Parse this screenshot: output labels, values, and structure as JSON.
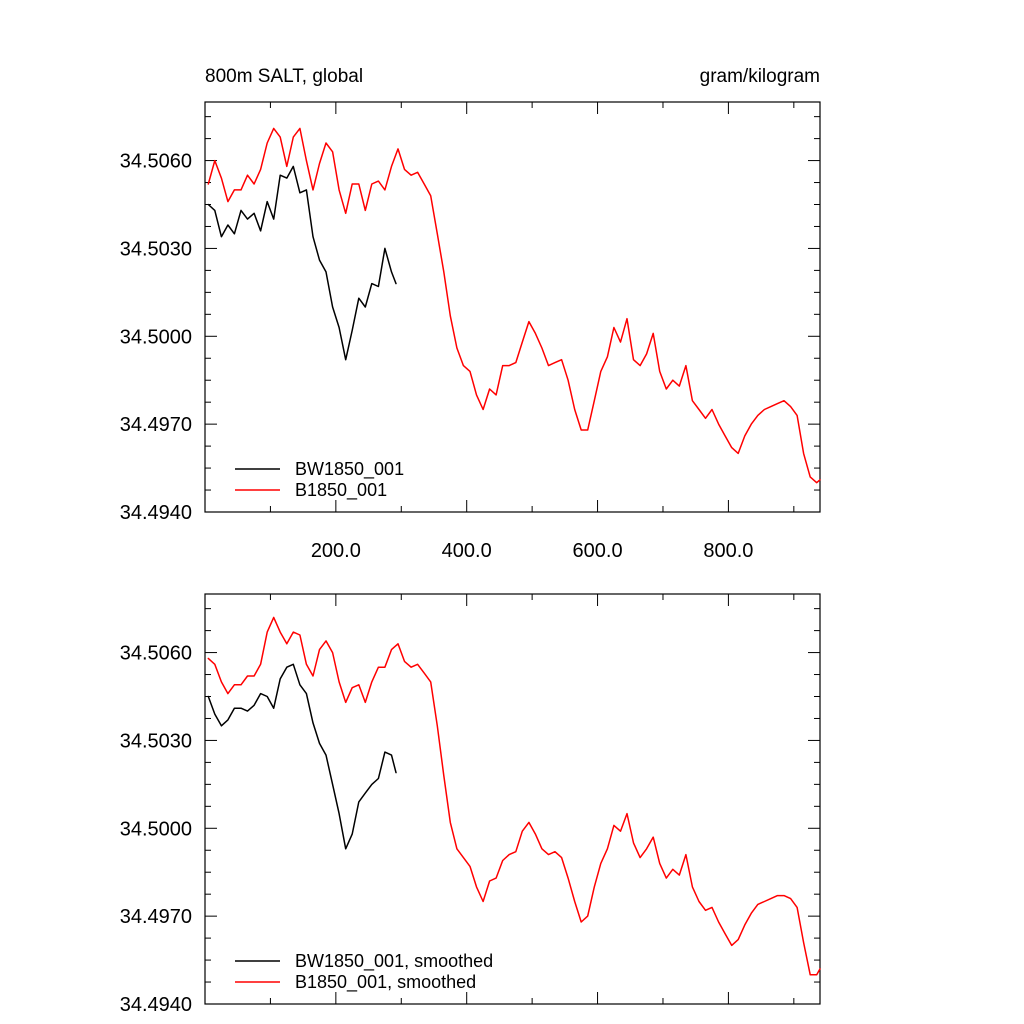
{
  "colors": {
    "bw": "#000000",
    "b": "#ff0000"
  },
  "chart_data": [
    {
      "type": "line",
      "title": "800m SALT, global",
      "units": "gram/kilogram",
      "xlim": [
        0,
        940
      ],
      "ylim": [
        34.494,
        34.508
      ],
      "xticks": [
        200,
        400,
        600,
        800
      ],
      "xtick_labels": [
        "200.0",
        "400.0",
        "600.0",
        "800.0"
      ],
      "yticks": [
        34.494,
        34.497,
        34.5,
        34.503,
        34.506
      ],
      "ytick_labels": [
        "34.4940",
        "34.4970",
        "34.5000",
        "34.5030",
        "34.5060"
      ],
      "series": [
        {
          "name": "BW1850_001",
          "x": [
            5,
            15,
            25,
            35,
            45,
            55,
            65,
            75,
            85,
            95,
            105,
            115,
            125,
            135,
            145,
            155,
            165,
            175,
            185,
            195,
            205,
            215,
            225,
            235,
            245,
            255,
            265,
            275,
            285,
            292
          ],
          "y": [
            34.5045,
            34.5043,
            34.5034,
            34.5038,
            34.5035,
            34.5043,
            34.504,
            34.5042,
            34.5036,
            34.5046,
            34.504,
            34.5055,
            34.5054,
            34.5058,
            34.5049,
            34.505,
            34.5034,
            34.5026,
            34.5022,
            34.501,
            34.5003,
            34.4992,
            34.5002,
            34.5013,
            34.501,
            34.5018,
            34.5017,
            34.503,
            34.5022,
            34.5018
          ]
        },
        {
          "name": "B1850_001",
          "x": [
            5,
            15,
            25,
            35,
            45,
            55,
            65,
            75,
            85,
            95,
            105,
            115,
            125,
            135,
            145,
            155,
            165,
            175,
            185,
            195,
            205,
            215,
            225,
            235,
            245,
            255,
            265,
            275,
            285,
            295,
            305,
            315,
            325,
            335,
            345,
            355,
            365,
            375,
            385,
            395,
            405,
            415,
            425,
            435,
            445,
            455,
            465,
            475,
            485,
            495,
            505,
            515,
            525,
            535,
            545,
            555,
            565,
            575,
            585,
            595,
            605,
            615,
            625,
            635,
            645,
            655,
            665,
            675,
            685,
            695,
            705,
            715,
            725,
            735,
            745,
            755,
            765,
            775,
            785,
            795,
            805,
            815,
            825,
            835,
            845,
            855,
            865,
            875,
            885,
            895,
            905,
            915,
            925,
            935,
            940
          ],
          "y": [
            34.5052,
            34.506,
            34.5054,
            34.5046,
            34.505,
            34.505,
            34.5055,
            34.5052,
            34.5057,
            34.5066,
            34.5071,
            34.5068,
            34.5058,
            34.5068,
            34.5071,
            34.506,
            34.505,
            34.5059,
            34.5066,
            34.5063,
            34.505,
            34.5042,
            34.5052,
            34.5052,
            34.5043,
            34.5052,
            34.5053,
            34.505,
            34.5058,
            34.5064,
            34.5057,
            34.5055,
            34.5056,
            34.5052,
            34.5048,
            34.5035,
            34.5022,
            34.5007,
            34.4996,
            34.499,
            34.4988,
            34.498,
            34.4975,
            34.4982,
            34.498,
            34.499,
            34.499,
            34.4991,
            34.4998,
            34.5005,
            34.5001,
            34.4996,
            34.499,
            34.4991,
            34.4992,
            34.4985,
            34.4975,
            34.4968,
            34.4968,
            34.4978,
            34.4988,
            34.4993,
            34.5003,
            34.4998,
            34.5006,
            34.4992,
            34.499,
            34.4994,
            34.5001,
            34.4988,
            34.4982,
            34.4985,
            34.4983,
            34.499,
            34.4978,
            34.4975,
            34.4972,
            34.4975,
            34.497,
            34.4966,
            34.4962,
            34.496,
            34.4966,
            34.497,
            34.4973,
            34.4975,
            34.4976,
            34.4977,
            34.4978,
            34.4976,
            34.4973,
            34.496,
            34.4952,
            34.495,
            34.4951
          ]
        }
      ]
    },
    {
      "type": "line",
      "title": "",
      "xlim": [
        0,
        940
      ],
      "ylim": [
        34.494,
        34.508
      ],
      "yticks": [
        34.494,
        34.497,
        34.5,
        34.503,
        34.506
      ],
      "ytick_labels": [
        "34.4940",
        "34.4970",
        "34.5000",
        "34.5030",
        "34.5060"
      ],
      "series": [
        {
          "name": "BW1850_001, smoothed",
          "x": [
            5,
            15,
            25,
            35,
            45,
            55,
            65,
            75,
            85,
            95,
            105,
            115,
            125,
            135,
            145,
            155,
            165,
            175,
            185,
            195,
            205,
            215,
            225,
            235,
            245,
            255,
            265,
            275,
            285,
            292
          ],
          "y": [
            34.5045,
            34.5039,
            34.5035,
            34.5037,
            34.5041,
            34.5041,
            34.504,
            34.5042,
            34.5046,
            34.5045,
            34.5041,
            34.5051,
            34.5055,
            34.5056,
            34.5049,
            34.5046,
            34.5036,
            34.5029,
            34.5025,
            34.5015,
            34.5005,
            34.4993,
            34.4998,
            34.5009,
            34.5012,
            34.5015,
            34.5017,
            34.5026,
            34.5025,
            34.5019
          ]
        },
        {
          "name": "B1850_001, smoothed",
          "x": [
            5,
            15,
            25,
            35,
            45,
            55,
            65,
            75,
            85,
            95,
            105,
            115,
            125,
            135,
            145,
            155,
            165,
            175,
            185,
            195,
            205,
            215,
            225,
            235,
            245,
            255,
            265,
            275,
            285,
            295,
            305,
            315,
            325,
            335,
            345,
            355,
            365,
            375,
            385,
            395,
            405,
            415,
            425,
            435,
            445,
            455,
            465,
            475,
            485,
            495,
            505,
            515,
            525,
            535,
            545,
            555,
            565,
            575,
            585,
            595,
            605,
            615,
            625,
            635,
            645,
            655,
            665,
            675,
            685,
            695,
            705,
            715,
            725,
            735,
            745,
            755,
            765,
            775,
            785,
            795,
            805,
            815,
            825,
            835,
            845,
            855,
            865,
            875,
            885,
            895,
            905,
            915,
            925,
            935,
            940
          ],
          "y": [
            34.5058,
            34.5056,
            34.505,
            34.5046,
            34.5049,
            34.5049,
            34.5052,
            34.5052,
            34.5056,
            34.5067,
            34.5072,
            34.5067,
            34.5063,
            34.5067,
            34.5066,
            34.5056,
            34.5052,
            34.5061,
            34.5064,
            34.506,
            34.505,
            34.5043,
            34.5048,
            34.5049,
            34.5043,
            34.505,
            34.5055,
            34.5055,
            34.5061,
            34.5063,
            34.5057,
            34.5055,
            34.5056,
            34.5053,
            34.505,
            34.5035,
            34.5018,
            34.5002,
            34.4993,
            34.499,
            34.4987,
            34.498,
            34.4975,
            34.4982,
            34.4983,
            34.4989,
            34.4991,
            34.4992,
            34.4999,
            34.5002,
            34.4998,
            34.4993,
            34.4991,
            34.4992,
            34.499,
            34.4983,
            34.4975,
            34.4968,
            34.497,
            34.498,
            34.4988,
            34.4993,
            34.5001,
            34.4999,
            34.5005,
            34.4995,
            34.499,
            34.4993,
            34.4997,
            34.4988,
            34.4983,
            34.4986,
            34.4984,
            34.4991,
            34.498,
            34.4975,
            34.4972,
            34.4973,
            34.4968,
            34.4964,
            34.496,
            34.4962,
            34.4967,
            34.4971,
            34.4974,
            34.4975,
            34.4976,
            34.4977,
            34.4977,
            34.4976,
            34.4973,
            34.4961,
            34.495,
            34.495,
            34.4952
          ]
        }
      ]
    }
  ]
}
